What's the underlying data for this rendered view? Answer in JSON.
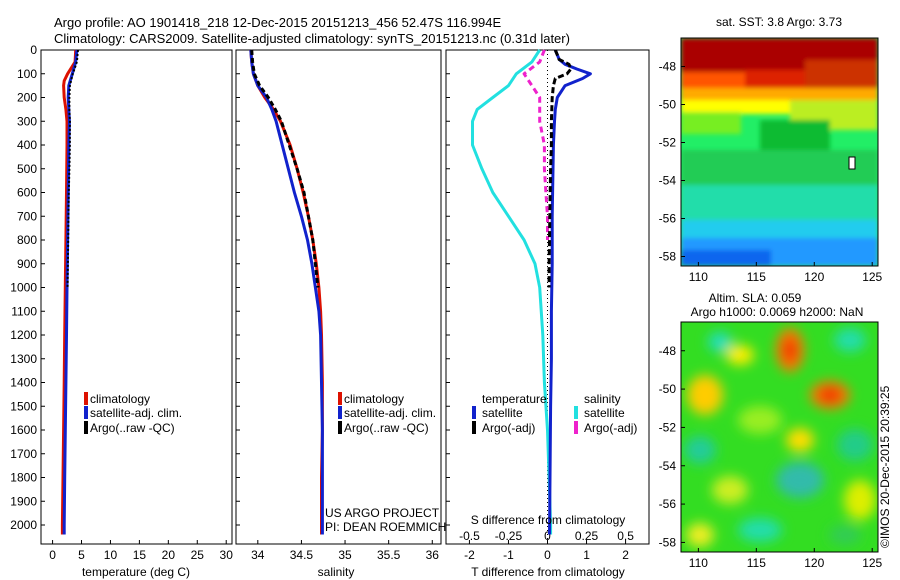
{
  "header": {
    "title_line1": "Argo profile: AO 1901418_218 12-Dec-2015 20151213_456 52.47S 116.994E",
    "title_line2": "Climatology: CARS2009. Satellite-adjusted climatology: synTS_20151213.nc (0.31d later)"
  },
  "colors": {
    "climatology": "#dd1100",
    "satellite": "#1122cc",
    "argo": "#000000",
    "satellite_salinity": "#22e0e0",
    "argo_salinity_adj": "#ee22cc"
  },
  "chart_data": [
    {
      "type": "line",
      "panel": "temperature",
      "xlabel": "temperature (deg C)",
      "xlim": [
        -2,
        31
      ],
      "xticks": [
        "0",
        "5",
        "10",
        "15",
        "20",
        "25",
        "30"
      ],
      "ylim": [
        2080,
        0
      ],
      "yticks": [
        "0",
        "100",
        "200",
        "300",
        "400",
        "500",
        "600",
        "700",
        "800",
        "900",
        "1000",
        "1100",
        "1200",
        "1300",
        "1400",
        "1500",
        "1600",
        "1700",
        "1800",
        "1900",
        "2000"
      ],
      "legend": [
        "climatology",
        "satellite-adj. clim.",
        "Argo(..raw -QC)"
      ],
      "series": [
        {
          "name": "climatology",
          "y": [
            0,
            50,
            100,
            130,
            150,
            200,
            250,
            300,
            400,
            600,
            800,
            1000,
            1200,
            1400,
            1600,
            1800,
            2000,
            2040
          ],
          "x": [
            4.0,
            3.9,
            2.6,
            2.0,
            1.9,
            2.0,
            2.3,
            2.5,
            2.5,
            2.4,
            2.3,
            2.2,
            2.1,
            2.0,
            1.9,
            1.8,
            1.7,
            1.7
          ]
        },
        {
          "name": "satellite-adj. clim.",
          "y": [
            0,
            50,
            100,
            150,
            200,
            250,
            300,
            400,
            600,
            800,
            1000,
            1200,
            1400,
            1600,
            1800,
            2000,
            2040
          ],
          "x": [
            4.2,
            4.0,
            3.4,
            2.8,
            2.7,
            2.8,
            2.9,
            2.8,
            2.7,
            2.6,
            2.5,
            2.4,
            2.3,
            2.2,
            2.1,
            2.0,
            2.0
          ]
        },
        {
          "name": "Argo(..raw -QC)",
          "y": [
            0,
            50,
            100,
            150,
            200,
            250,
            300,
            400,
            500,
            600,
            800,
            1000
          ],
          "x": [
            4.4,
            4.2,
            3.5,
            3.0,
            2.9,
            2.9,
            3.0,
            3.0,
            2.9,
            2.8,
            2.7,
            2.6
          ]
        }
      ]
    },
    {
      "type": "line",
      "panel": "salinity",
      "xlabel": "salinity",
      "xlim": [
        33.75,
        36.1
      ],
      "xticks": [
        "34",
        "34.5",
        "35",
        "35.5",
        "36"
      ],
      "ylim": [
        2080,
        0
      ],
      "legend": [
        "climatology",
        "satellite-adj. clim.",
        "Argo(..raw -QC)"
      ],
      "annotation": [
        "US ARGO PROJECT",
        "PI: DEAN ROEMMICH"
      ],
      "series": [
        {
          "name": "climatology",
          "y": [
            0,
            50,
            100,
            150,
            200,
            250,
            300,
            400,
            500,
            600,
            700,
            800,
            900,
            1000,
            1100,
            1200,
            1400,
            1600,
            1800,
            2000,
            2040
          ],
          "x": [
            33.92,
            33.93,
            33.95,
            34.0,
            34.08,
            34.18,
            34.26,
            34.37,
            34.45,
            34.52,
            34.58,
            34.63,
            34.67,
            34.7,
            34.72,
            34.73,
            34.74,
            34.74,
            34.73,
            34.73,
            34.73
          ]
        },
        {
          "name": "satellite-adj. clim.",
          "y": [
            0,
            50,
            100,
            150,
            200,
            250,
            300,
            400,
            500,
            600,
            700,
            800,
            900,
            1000,
            1100,
            1200,
            1400,
            1600,
            1800,
            2000,
            2040
          ],
          "x": [
            33.92,
            33.93,
            33.95,
            34.0,
            34.1,
            34.16,
            34.21,
            34.28,
            34.35,
            34.42,
            34.5,
            34.57,
            34.62,
            34.66,
            34.7,
            34.72,
            34.73,
            34.74,
            34.74,
            34.74,
            34.74
          ]
        },
        {
          "name": "Argo(..raw -QC)",
          "y": [
            0,
            50,
            100,
            150,
            200,
            250,
            300,
            400,
            500,
            600,
            700,
            800,
            900,
            1000
          ],
          "x": [
            33.93,
            33.94,
            33.96,
            34.02,
            34.12,
            34.2,
            34.27,
            34.36,
            34.45,
            34.53,
            34.58,
            34.63,
            34.66,
            34.69
          ]
        }
      ]
    },
    {
      "type": "line",
      "panel": "difference",
      "xlabel": "T difference from climatology",
      "top_xlabel": "S difference from climatology",
      "xlim": [
        -2.6,
        2.6
      ],
      "xticks": [
        "-2",
        "-1",
        "0",
        "1",
        "2"
      ],
      "top_xticks": [
        "-0.5",
        "-0.25",
        "0",
        "0.25",
        "0.5"
      ],
      "ylim": [
        2080,
        0
      ],
      "legend_headers": [
        "temperature",
        "salinity"
      ],
      "legend": [
        "satellite",
        "Argo(-adj)",
        "satellite",
        "Argo(-adj)"
      ],
      "series": [
        {
          "name": "satellite",
          "y": [
            0,
            20,
            40,
            60,
            80,
            100,
            120,
            150,
            200,
            250,
            300,
            400,
            500,
            700,
            900,
            1100,
            1300,
            1500,
            1700,
            1900,
            2040
          ],
          "x": [
            0.2,
            0.25,
            0.3,
            0.45,
            0.75,
            1.1,
            0.9,
            0.45,
            0.25,
            0.2,
            0.18,
            0.15,
            0.14,
            0.12,
            0.12,
            0.1,
            0.1,
            0.08,
            0.07,
            0.06,
            0.05
          ]
        },
        {
          "name": "Argo(-adj)",
          "y": [
            0,
            40,
            60,
            80,
            100,
            120,
            150,
            200,
            300,
            400,
            500,
            600,
            700,
            800,
            900,
            1000
          ],
          "x": [
            0.2,
            0.3,
            0.55,
            0.6,
            0.5,
            0.2,
            0.15,
            0.12,
            0.1,
            0.1,
            0.08,
            0.07,
            0.06,
            0.05,
            0.04,
            0.04
          ]
        },
        {
          "name": "satellite",
          "y": [
            0,
            50,
            100,
            150,
            200,
            250,
            300,
            400,
            500,
            600,
            700,
            800,
            900,
            1000,
            1200,
            1400,
            1600,
            1800,
            2000,
            2040
          ],
          "x": [
            -0.05,
            -0.1,
            -0.2,
            -0.25,
            -0.35,
            -0.45,
            -0.48,
            -0.48,
            -0.42,
            -0.35,
            -0.25,
            -0.15,
            -0.08,
            -0.05,
            -0.03,
            -0.02,
            0.0,
            0.01,
            0.02,
            0.02
          ]
        },
        {
          "name": "Argo(-adj)",
          "y": [
            0,
            50,
            100,
            150,
            200,
            250,
            300,
            400,
            500,
            600,
            700,
            800
          ],
          "x": [
            -0.02,
            -0.05,
            -0.15,
            -0.1,
            -0.05,
            -0.05,
            -0.05,
            -0.02,
            -0.02,
            -0.01,
            0.0,
            0.0
          ]
        }
      ]
    },
    {
      "type": "heatmap",
      "panel": "sst_map",
      "title": "sat. SST: 3.8 Argo: 3.73",
      "xlim": [
        108.5,
        125.5
      ],
      "ylim": [
        -58.5,
        -46.5
      ],
      "xticks": [
        "110",
        "115",
        "120",
        "125"
      ],
      "yticks": [
        "-48",
        "-50",
        "-52",
        "-54",
        "-56",
        "-58"
      ],
      "marker": {
        "lon": 117.0,
        "lat": -52.47
      }
    },
    {
      "type": "heatmap",
      "panel": "sla_map",
      "title": "Altim. SLA: 0.059",
      "subtitle": "Argo h1000: 0.0069 h2000: NaN",
      "xlim": [
        108.5,
        125.5
      ],
      "ylim": [
        -58.5,
        -46.5
      ],
      "xticks": [
        "110",
        "115",
        "120",
        "125"
      ],
      "yticks": [
        "-48",
        "-50",
        "-52",
        "-54",
        "-56",
        "-58"
      ]
    }
  ],
  "credit": "©IMOS 20-Dec-2015 20:39:25"
}
